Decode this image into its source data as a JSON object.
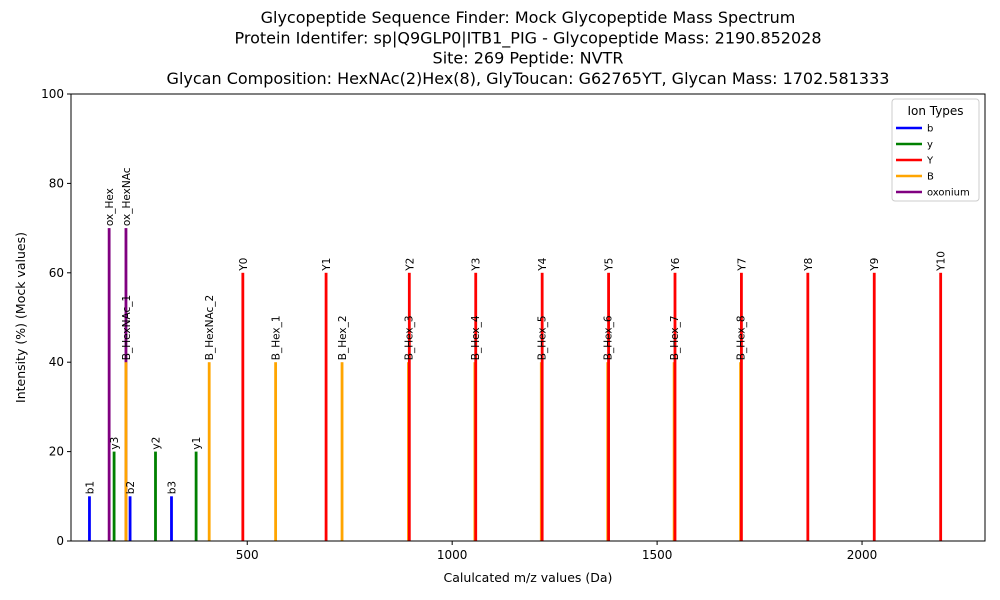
{
  "chart_data": {
    "type": "bar",
    "title_lines": [
      "Glycopeptide Sequence Finder: Mock Glycopeptide Mass Spectrum",
      "Protein Identifer: sp|Q9GLP0|ITB1_PIG - Glycopeptide Mass: 2190.852028",
      "Site: 269 Peptide: NVTR",
      "Glycan Composition: HexNAc(2)Hex(8), GlyToucan: G62765YT, Glycan Mass: 1702.581333"
    ],
    "xlabel": "Calulcated m/z values (Da)",
    "ylabel": "Intensity (%) (Mock values)",
    "xlim": [
      70,
      2300
    ],
    "ylim": [
      0,
      100
    ],
    "xticks": [
      500,
      1000,
      1500,
      2000
    ],
    "yticks": [
      0,
      20,
      40,
      60,
      80,
      100
    ],
    "legend": {
      "title": "Ion Types",
      "position": "top-right",
      "entries": [
        {
          "label": "b",
          "color": "#0000ff"
        },
        {
          "label": "y",
          "color": "#008000"
        },
        {
          "label": "Y",
          "color": "#ff0000"
        },
        {
          "label": "B",
          "color": "#ffa500"
        },
        {
          "label": "oxonium",
          "color": "#800080"
        }
      ]
    },
    "peaks": [
      {
        "mz": 115.05,
        "intensity": 10,
        "type": "b",
        "label": "b1"
      },
      {
        "mz": 214.12,
        "intensity": 10,
        "type": "b",
        "label": "b2"
      },
      {
        "mz": 315.17,
        "intensity": 10,
        "type": "b",
        "label": "b3"
      },
      {
        "mz": 175.12,
        "intensity": 20,
        "type": "y",
        "label": "y3"
      },
      {
        "mz": 276.17,
        "intensity": 20,
        "type": "y",
        "label": "y2"
      },
      {
        "mz": 375.24,
        "intensity": 20,
        "type": "y",
        "label": "y1"
      },
      {
        "mz": 163.06,
        "intensity": 70,
        "type": "oxonium",
        "label": "ox_Hex"
      },
      {
        "mz": 204.09,
        "intensity": 70,
        "type": "oxonium",
        "label": "ox_HexNAc"
      },
      {
        "mz": 204.09,
        "intensity": 40,
        "type": "B",
        "label": "B_HexNAc_1"
      },
      {
        "mz": 407.17,
        "intensity": 40,
        "type": "B",
        "label": "B_HexNAc_2"
      },
      {
        "mz": 569.22,
        "intensity": 40,
        "type": "B",
        "label": "B_Hex_1"
      },
      {
        "mz": 731.28,
        "intensity": 40,
        "type": "B",
        "label": "B_Hex_2"
      },
      {
        "mz": 893.33,
        "intensity": 40,
        "type": "B",
        "label": "B_Hex_3"
      },
      {
        "mz": 1055.38,
        "intensity": 40,
        "type": "B",
        "label": "B_Hex_4"
      },
      {
        "mz": 1217.43,
        "intensity": 40,
        "type": "B",
        "label": "B_Hex_5"
      },
      {
        "mz": 1379.49,
        "intensity": 40,
        "type": "B",
        "label": "B_Hex_6"
      },
      {
        "mz": 1541.54,
        "intensity": 40,
        "type": "B",
        "label": "B_Hex_7"
      },
      {
        "mz": 1703.59,
        "intensity": 40,
        "type": "B",
        "label": "B_Hex_8"
      },
      {
        "mz": 489.27,
        "intensity": 60,
        "type": "Y",
        "label": "Y0"
      },
      {
        "mz": 692.35,
        "intensity": 60,
        "type": "Y",
        "label": "Y1"
      },
      {
        "mz": 895.43,
        "intensity": 60,
        "type": "Y",
        "label": "Y2"
      },
      {
        "mz": 1057.48,
        "intensity": 60,
        "type": "Y",
        "label": "Y3"
      },
      {
        "mz": 1219.54,
        "intensity": 60,
        "type": "Y",
        "label": "Y4"
      },
      {
        "mz": 1381.59,
        "intensity": 60,
        "type": "Y",
        "label": "Y5"
      },
      {
        "mz": 1543.64,
        "intensity": 60,
        "type": "Y",
        "label": "Y6"
      },
      {
        "mz": 1705.69,
        "intensity": 60,
        "type": "Y",
        "label": "Y7"
      },
      {
        "mz": 1867.75,
        "intensity": 60,
        "type": "Y",
        "label": "Y8"
      },
      {
        "mz": 2029.8,
        "intensity": 60,
        "type": "Y",
        "label": "Y9"
      },
      {
        "mz": 2191.85,
        "intensity": 60,
        "type": "Y",
        "label": "Y10"
      }
    ]
  }
}
